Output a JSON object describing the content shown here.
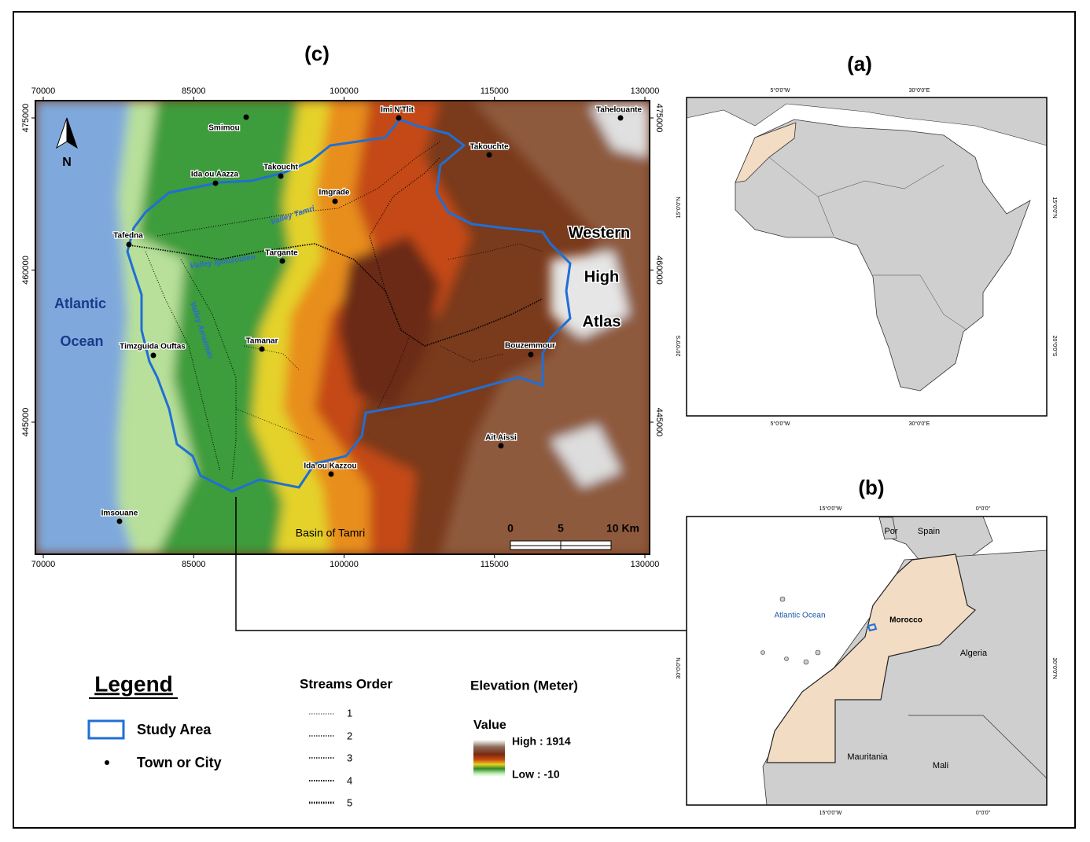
{
  "main_map": {
    "label": "(c)",
    "xticks": [
      70000,
      85000,
      100000,
      115000,
      130000
    ],
    "yticks": [
      475000,
      460000,
      445000
    ],
    "towns": [
      "Smimou",
      "Imi N'Tlit",
      "Tahelouante",
      "Takouchte",
      "Ida ou Aazza",
      "Takoucht",
      "Imgrade",
      "Tafedna",
      "Targante",
      "Tamanar",
      "Timzguida Ouftas",
      "Bouzemmour",
      "Ait Aissi",
      "Ida ou Kazzou",
      "Imsouane"
    ],
    "places": [
      "Atlantic",
      "Ocean",
      "Western",
      "High",
      "Atlas",
      "Basin of Tamri"
    ],
    "valleys": [
      "Valley Tamri",
      "Valley Igouzoulen",
      "Valley Ameimim"
    ],
    "north": "N",
    "scale": [
      "0",
      "5",
      "10 Km"
    ]
  },
  "map_a": {
    "label": "(a)",
    "lon_labels": [
      "5°0'0\"W",
      "30°0'0\"E"
    ],
    "lat_labels": [
      "15°0'0\"N",
      "20°0'0\"S"
    ]
  },
  "map_b": {
    "label": "(b)",
    "lon_labels": [
      "15°0'0\"W",
      "0°0'0\""
    ],
    "lat_labels": [
      "30°0'0\"N"
    ],
    "countries": [
      "Por",
      "Spain",
      "Morocco",
      "Algeria",
      "Mauritania",
      "Mali"
    ],
    "ocean": "Atlantic Ocean"
  },
  "legend": {
    "title": "Legend",
    "items": [
      "Study Area",
      "Town or City"
    ],
    "streams_title": "Streams Order",
    "streams": [
      "1",
      "2",
      "3",
      "4",
      "5"
    ],
    "elevation_title": "Elevation (Meter)",
    "value_title": "Value",
    "high": "High : 1914",
    "low": "Low : -10"
  }
}
